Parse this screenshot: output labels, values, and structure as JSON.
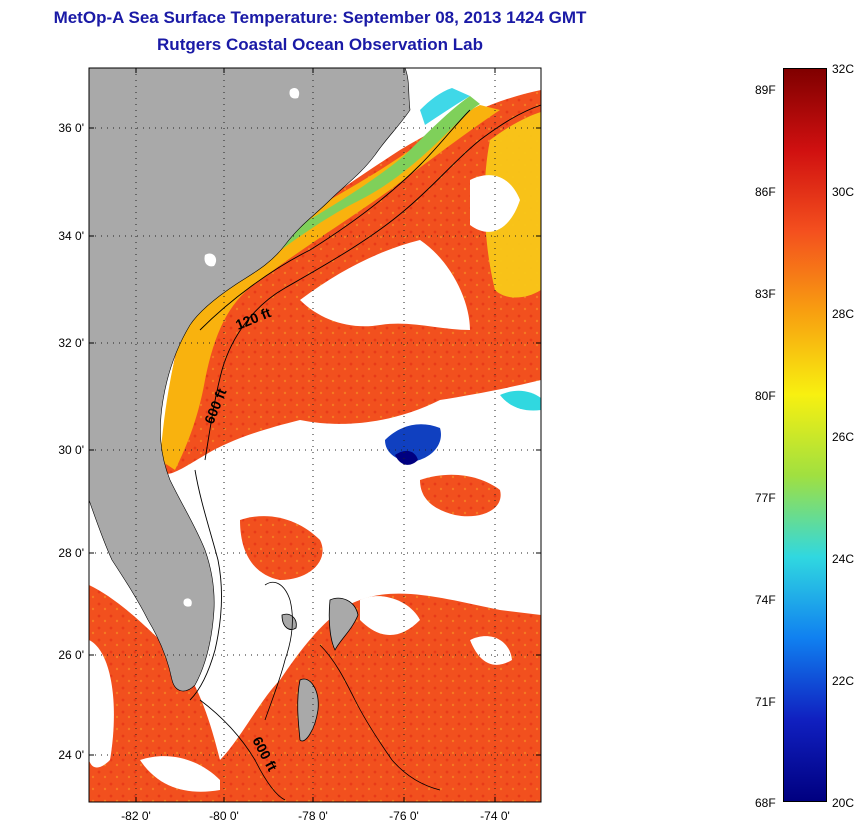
{
  "title_line1": "MetOp-A Sea Surface Temperature:  September 08, 2013 1424 GMT",
  "title_line2": "Rutgers Coastal Ocean Observation Lab",
  "map": {
    "lat_ticks": [
      "36 0'",
      "34 0'",
      "32 0'",
      "30 0'",
      "28 0'",
      "26 0'",
      "24 0'"
    ],
    "lon_ticks": [
      "-82 0'",
      "-80 0'",
      "-78 0'",
      "-76 0'",
      "-74 0'"
    ],
    "contour_labels": [
      "120 ft",
      "600 ft",
      "600 ft"
    ],
    "colors": {
      "land": "#a9a9a9",
      "cloud": "#ffffff",
      "warm": "#f2501e",
      "shelf": "#f9b20e"
    }
  },
  "colorbar": {
    "fahrenheit_labels": [
      "89F",
      "86F",
      "83F",
      "80F",
      "77F",
      "74F",
      "71F",
      "68F"
    ],
    "celsius_labels": [
      "32C",
      "30C",
      "28C",
      "26C",
      "24C",
      "22C",
      "20C"
    ],
    "colors": [
      "#800000",
      "#d01010",
      "#f4501e",
      "#f8a010",
      "#f8f010",
      "#a0e040",
      "#30d8e0",
      "#1080f0",
      "#1020c0",
      "#000080"
    ]
  }
}
